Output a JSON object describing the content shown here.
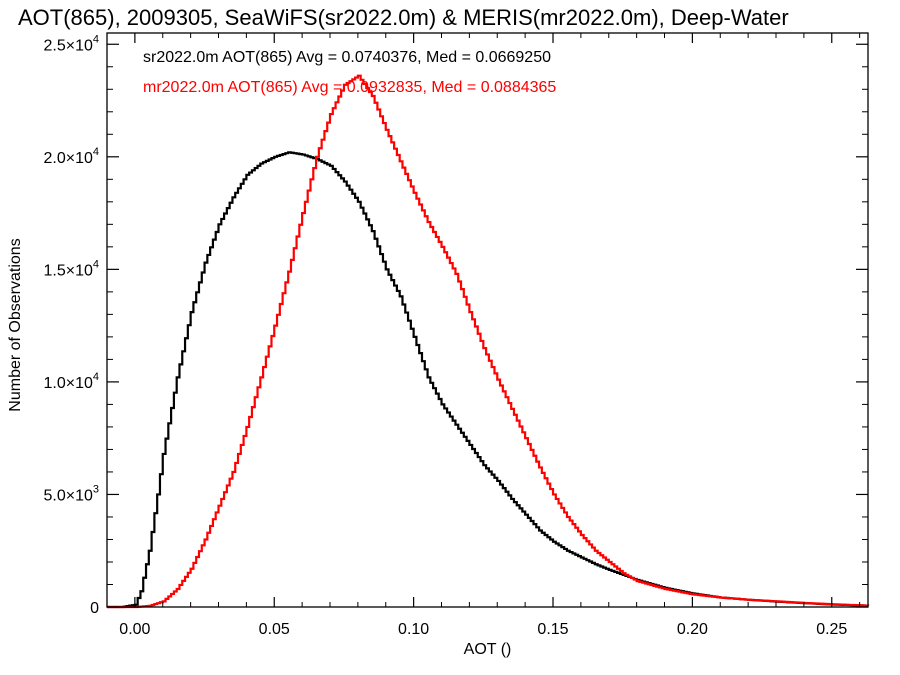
{
  "chart_data": {
    "type": "line",
    "title": "AOT(865), 2009305, SeaWiFS(sr2022.0m) & MERIS(mr2022.0m), Deep-Water",
    "xlabel": "AOT ()",
    "ylabel": "Number of Observations",
    "xlim": [
      -0.01,
      0.263
    ],
    "ylim": [
      0,
      25500
    ],
    "x_ticks": [
      {
        "value": 0.0,
        "label": "0.00"
      },
      {
        "value": 0.05,
        "label": "0.05"
      },
      {
        "value": 0.1,
        "label": "0.10"
      },
      {
        "value": 0.15,
        "label": "0.15"
      },
      {
        "value": 0.2,
        "label": "0.20"
      },
      {
        "value": 0.25,
        "label": "0.25"
      }
    ],
    "y_ticks": [
      {
        "value": 0,
        "mant": "0",
        "exp": ""
      },
      {
        "value": 5000,
        "mant": "5.0×10",
        "exp": "3"
      },
      {
        "value": 10000,
        "mant": "1.0×10",
        "exp": "4"
      },
      {
        "value": 15000,
        "mant": "1.5×10",
        "exp": "4"
      },
      {
        "value": 20000,
        "mant": "2.0×10",
        "exp": "4"
      },
      {
        "value": 25000,
        "mant": "2.5×10",
        "exp": "4"
      }
    ],
    "grid": false,
    "series": [
      {
        "name": "sr2022.0m",
        "color": "#000000",
        "stats_text": "sr2022.0m AOT(865) Avg = 0.0740376, Med = 0.0669250",
        "x": [
          -0.01,
          -0.005,
          0.0,
          0.002,
          0.005,
          0.008,
          0.01,
          0.015,
          0.02,
          0.025,
          0.03,
          0.035,
          0.04,
          0.045,
          0.05,
          0.055,
          0.06,
          0.065,
          0.07,
          0.075,
          0.08,
          0.085,
          0.09,
          0.095,
          0.1,
          0.105,
          0.11,
          0.115,
          0.12,
          0.125,
          0.13,
          0.135,
          0.14,
          0.145,
          0.15,
          0.155,
          0.16,
          0.165,
          0.17,
          0.18,
          0.19,
          0.2,
          0.21,
          0.22,
          0.23,
          0.24,
          0.25,
          0.263
        ],
        "y": [
          0,
          0,
          100,
          700,
          2500,
          5000,
          6800,
          10200,
          13100,
          15300,
          17000,
          18200,
          19200,
          19700,
          20000,
          20200,
          20100,
          19900,
          19600,
          18900,
          18000,
          16700,
          15000,
          13800,
          12000,
          10200,
          9000,
          8100,
          7200,
          6300,
          5600,
          4800,
          4100,
          3400,
          2900,
          2500,
          2200,
          1900,
          1650,
          1200,
          850,
          600,
          420,
          320,
          240,
          170,
          110,
          60
        ]
      },
      {
        "name": "mr2022.0m",
        "color": "#ff0000",
        "stats_text": "mr2022.0m AOT(865) Avg = 0.0932835, Med = 0.0884365",
        "x": [
          -0.01,
          0.0,
          0.005,
          0.01,
          0.015,
          0.02,
          0.025,
          0.03,
          0.035,
          0.04,
          0.045,
          0.05,
          0.055,
          0.06,
          0.065,
          0.07,
          0.075,
          0.08,
          0.085,
          0.09,
          0.095,
          0.1,
          0.105,
          0.11,
          0.115,
          0.12,
          0.125,
          0.13,
          0.135,
          0.14,
          0.145,
          0.15,
          0.155,
          0.16,
          0.165,
          0.17,
          0.175,
          0.18,
          0.19,
          0.2,
          0.21,
          0.22,
          0.23,
          0.24,
          0.25,
          0.263
        ],
        "y": [
          0,
          0,
          50,
          250,
          800,
          1700,
          3000,
          4500,
          6000,
          8000,
          10200,
          12500,
          14900,
          17500,
          20000,
          21900,
          23200,
          23600,
          22700,
          21200,
          19800,
          18400,
          17100,
          16000,
          14800,
          13100,
          11500,
          10100,
          8800,
          7500,
          6200,
          5000,
          4000,
          3200,
          2500,
          2000,
          1500,
          1150,
          800,
          560,
          420,
          320,
          250,
          180,
          120,
          60
        ]
      }
    ]
  }
}
